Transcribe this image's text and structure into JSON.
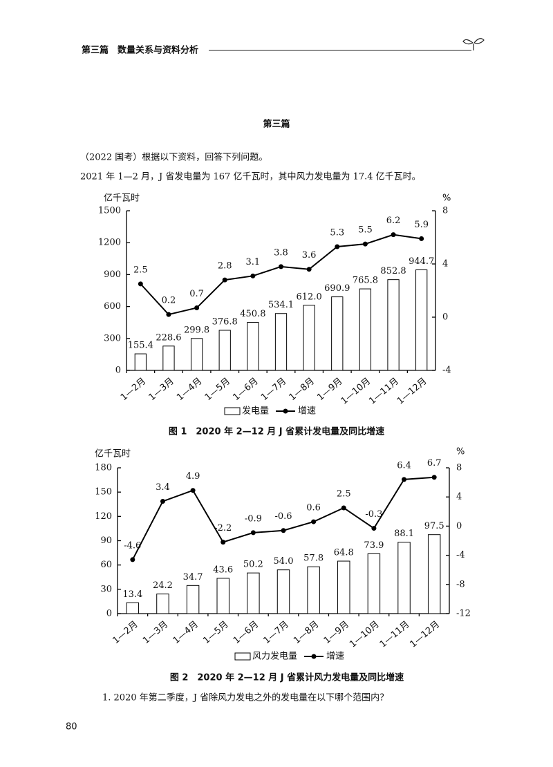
{
  "header": {
    "title": "第三篇　数量关系与资料分析"
  },
  "section_title": "第三篇",
  "intro": "（2022 国考）根据以下资料，回答下列问题。",
  "paragraph": "2021 年 1—2 月，J 省发电量为 167 亿千瓦时，其中风力发电量为 17.4 亿千瓦时。",
  "chart_data": [
    {
      "type": "combo",
      "caption": "图 1　2020 年 2—12 月 J 省累计发电量及同比增速",
      "y_label": "亿千瓦时",
      "y2_label": "%",
      "categories": [
        "1—2月",
        "1—3月",
        "1—4月",
        "1—5月",
        "1—6月",
        "1—7月",
        "1—8月",
        "1—9月",
        "1—10月",
        "1—11月",
        "1—12月"
      ],
      "series": [
        {
          "name": "发电量",
          "color": "#000000",
          "values": [
            155.4,
            228.6,
            299.8,
            376.8,
            450.8,
            534.1,
            612.0,
            690.9,
            765.8,
            852.8,
            944.7
          ],
          "value_labels": [
            "155.4",
            "228.6",
            "299.8",
            "376.8",
            "450.8",
            "534.1",
            "612.0",
            "690.9",
            "765.8",
            "852.8",
            "944.7"
          ]
        },
        {
          "name": "增速",
          "color": "#000000",
          "axis": "y2",
          "values": [
            2.5,
            0.2,
            0.7,
            2.8,
            3.1,
            3.8,
            3.6,
            5.3,
            5.5,
            6.2,
            5.9
          ]
        }
      ],
      "ylim": [
        0,
        1500
      ],
      "yticks": [
        0,
        300,
        600,
        900,
        1200,
        1500
      ],
      "y2lim": [
        -4,
        8
      ],
      "y2ticks": [
        -4,
        0,
        4,
        8
      ]
    },
    {
      "type": "combo",
      "caption": "图 2　2020 年 2—12 月 J 省累计风力发电量及同比增速",
      "y_label": "亿千瓦时",
      "y2_label": "%",
      "categories": [
        "1—2月",
        "1—3月",
        "1—4月",
        "1—5月",
        "1—6月",
        "1—7月",
        "1—8月",
        "1—9月",
        "1—10月",
        "1—11月",
        "1—12月"
      ],
      "series": [
        {
          "name": "风力发电量",
          "color": "#000000",
          "values": [
            13.4,
            24.2,
            34.7,
            43.6,
            50.2,
            54.0,
            57.8,
            64.8,
            73.9,
            88.1,
            97.5
          ],
          "value_labels": [
            "13.4",
            "24.2",
            "34.7",
            "43.6",
            "50.2",
            "54.0",
            "57.8",
            "64.8",
            "73.9",
            "88.1",
            "97.5"
          ]
        },
        {
          "name": "增速",
          "color": "#000000",
          "axis": "y2",
          "values": [
            -4.6,
            3.4,
            4.9,
            -2.2,
            -0.9,
            -0.6,
            0.6,
            2.5,
            -0.3,
            6.4,
            6.7
          ]
        }
      ],
      "ylim": [
        0,
        180
      ],
      "yticks": [
        0,
        30,
        60,
        90,
        120,
        150,
        180
      ],
      "y2lim": [
        -12,
        8
      ],
      "y2ticks": [
        -12,
        -8,
        -4,
        0,
        4,
        8
      ]
    }
  ],
  "question": "1. 2020 年第二季度，J 省除风力发电之外的发电量在以下哪个范围内？",
  "page_number": "80"
}
